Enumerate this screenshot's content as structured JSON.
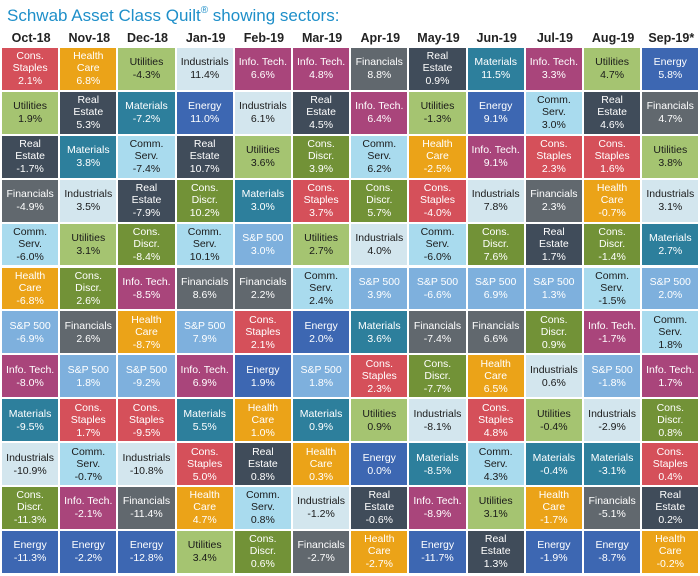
{
  "title": {
    "text": "Schwab Asset Class Quilt",
    "sup": "®",
    "suffix": " showing sectors:"
  },
  "colors": {
    "Cons. Staples": "#d5505a",
    "Health Care": "#eba318",
    "Utilities": "#a5c471",
    "Industrials": "#d3e6ee",
    "Info. Tech.": "#a9457b",
    "Energy": "#3d67b2",
    "Financials": "#61686e",
    "Materials": "#2d7f9c",
    "Real Estate": "#404c5a",
    "Comm. Serv.": "#a9dbee",
    "S&P 500": "#7eb0dd",
    "Cons. Discr.": "#729237"
  },
  "chart_data": {
    "type": "table",
    "title": "Schwab Asset Class Quilt showing sectors:",
    "columns": [
      "Oct-18",
      "Nov-18",
      "Dec-18",
      "Jan-19",
      "Feb-19",
      "Mar-19",
      "Apr-19",
      "May-19",
      "Jun-19",
      "Jul-19",
      "Aug-19",
      "Sep-19*"
    ],
    "rows": [
      [
        [
          "Cons. Staples",
          "2.1%"
        ],
        [
          "Health Care",
          "6.8%"
        ],
        [
          "Utilities",
          "-4.3%"
        ],
        [
          "Industrials",
          "11.4%"
        ],
        [
          "Info. Tech.",
          "6.6%"
        ],
        [
          "Info. Tech.",
          "4.8%"
        ],
        [
          "Financials",
          "8.8%"
        ],
        [
          "Real Estate",
          "0.9%"
        ],
        [
          "Materials",
          "11.5%"
        ],
        [
          "Info. Tech.",
          "3.3%"
        ],
        [
          "Utilities",
          "4.7%"
        ],
        [
          "Energy",
          "5.8%"
        ]
      ],
      [
        [
          "Utilities",
          "1.9%"
        ],
        [
          "Real Estate",
          "5.3%"
        ],
        [
          "Materials",
          "-7.2%"
        ],
        [
          "Energy",
          "11.0%"
        ],
        [
          "Industrials",
          "6.1%"
        ],
        [
          "Real Estate",
          "4.5%"
        ],
        [
          "Info. Tech.",
          "6.4%"
        ],
        [
          "Utilities",
          "-1.3%"
        ],
        [
          "Energy",
          "9.1%"
        ],
        [
          "Comm. Serv.",
          "3.0%"
        ],
        [
          "Real Estate",
          "4.6%"
        ],
        [
          "Financials",
          "4.7%"
        ]
      ],
      [
        [
          "Real Estate",
          "-1.7%"
        ],
        [
          "Materials",
          "3.8%"
        ],
        [
          "Comm. Serv.",
          "-7.4%"
        ],
        [
          "Real Estate",
          "10.7%"
        ],
        [
          "Utilities",
          "3.6%"
        ],
        [
          "Cons. Discr.",
          "3.9%"
        ],
        [
          "Comm. Serv.",
          "6.2%"
        ],
        [
          "Health Care",
          "-2.5%"
        ],
        [
          "Info. Tech.",
          "9.1%"
        ],
        [
          "Cons. Staples",
          "2.3%"
        ],
        [
          "Cons. Staples",
          "1.6%"
        ],
        [
          "Utilities",
          "3.8%"
        ]
      ],
      [
        [
          "Financials",
          "-4.9%"
        ],
        [
          "Industrials",
          "3.5%"
        ],
        [
          "Real Estate",
          "-7.9%"
        ],
        [
          "Cons. Discr.",
          "10.2%"
        ],
        [
          "Materials",
          "3.0%"
        ],
        [
          "Cons. Staples",
          "3.7%"
        ],
        [
          "Cons. Discr.",
          "5.7%"
        ],
        [
          "Cons. Staples",
          "-4.0%"
        ],
        [
          "Industrials",
          "7.8%"
        ],
        [
          "Financials",
          "2.3%"
        ],
        [
          "Health Care",
          "-0.7%"
        ],
        [
          "Industrials",
          "3.1%"
        ]
      ],
      [
        [
          "Comm. Serv.",
          "-6.0%"
        ],
        [
          "Utilities",
          "3.1%"
        ],
        [
          "Cons. Discr.",
          "-8.4%"
        ],
        [
          "Comm. Serv.",
          "10.1%"
        ],
        [
          "S&P 500",
          "3.0%"
        ],
        [
          "Utilities",
          "2.7%"
        ],
        [
          "Industrials",
          "4.0%"
        ],
        [
          "Comm. Serv.",
          "-6.0%"
        ],
        [
          "Cons. Discr.",
          "7.6%"
        ],
        [
          "Real Estate",
          "1.7%"
        ],
        [
          "Cons. Discr.",
          "-1.4%"
        ],
        [
          "Materials",
          "2.7%"
        ]
      ],
      [
        [
          "Health Care",
          "-6.8%"
        ],
        [
          "Cons. Discr.",
          "2.6%"
        ],
        [
          "Info. Tech.",
          "-8.5%"
        ],
        [
          "Financials",
          "8.6%"
        ],
        [
          "Financials",
          "2.2%"
        ],
        [
          "Comm. Serv.",
          "2.4%"
        ],
        [
          "S&P 500",
          "3.9%"
        ],
        [
          "S&P 500",
          "-6.6%"
        ],
        [
          "S&P 500",
          "6.9%"
        ],
        [
          "S&P 500",
          "1.3%"
        ],
        [
          "Comm. Serv.",
          "-1.5%"
        ],
        [
          "S&P 500",
          "2.0%"
        ]
      ],
      [
        [
          "S&P 500",
          "-6.9%"
        ],
        [
          "Financials",
          "2.6%"
        ],
        [
          "Health Care",
          "-8.7%"
        ],
        [
          "S&P 500",
          "7.9%"
        ],
        [
          "Cons. Staples",
          "2.1%"
        ],
        [
          "Energy",
          "2.0%"
        ],
        [
          "Materials",
          "3.6%"
        ],
        [
          "Financials",
          "-7.4%"
        ],
        [
          "Financials",
          "6.6%"
        ],
        [
          "Cons. Discr.",
          "0.9%"
        ],
        [
          "Info. Tech.",
          "-1.7%"
        ],
        [
          "Comm. Serv.",
          "1.8%"
        ]
      ],
      [
        [
          "Info. Tech.",
          "-8.0%"
        ],
        [
          "S&P 500",
          "1.8%"
        ],
        [
          "S&P 500",
          "-9.2%"
        ],
        [
          "Info. Tech.",
          "6.9%"
        ],
        [
          "Energy",
          "1.9%"
        ],
        [
          "S&P 500",
          "1.8%"
        ],
        [
          "Cons. Staples",
          "2.3%"
        ],
        [
          "Cons. Discr.",
          "-7.7%"
        ],
        [
          "Health Care",
          "6.5%"
        ],
        [
          "Industrials",
          "0.6%"
        ],
        [
          "S&P 500",
          "-1.8%"
        ],
        [
          "Info. Tech.",
          "1.7%"
        ]
      ],
      [
        [
          "Materials",
          "-9.5%"
        ],
        [
          "Cons. Staples",
          "1.7%"
        ],
        [
          "Cons. Staples",
          "-9.5%"
        ],
        [
          "Materials",
          "5.5%"
        ],
        [
          "Health Care",
          "1.0%"
        ],
        [
          "Materials",
          "0.9%"
        ],
        [
          "Utilities",
          "0.9%"
        ],
        [
          "Industrials",
          "-8.1%"
        ],
        [
          "Cons. Staples",
          "4.8%"
        ],
        [
          "Utilities",
          "-0.4%"
        ],
        [
          "Industrials",
          "-2.9%"
        ],
        [
          "Cons. Discr.",
          "0.8%"
        ]
      ],
      [
        [
          "Industrials",
          "-10.9%"
        ],
        [
          "Comm. Serv.",
          "-0.7%"
        ],
        [
          "Industrials",
          "-10.8%"
        ],
        [
          "Cons. Staples",
          "5.0%"
        ],
        [
          "Real Estate",
          "0.8%"
        ],
        [
          "Health Care",
          "0.3%"
        ],
        [
          "Energy",
          "0.0%"
        ],
        [
          "Materials",
          "-8.5%"
        ],
        [
          "Comm. Serv.",
          "4.3%"
        ],
        [
          "Materials",
          "-0.4%"
        ],
        [
          "Materials",
          "-3.1%"
        ],
        [
          "Cons. Staples",
          "0.4%"
        ]
      ],
      [
        [
          "Cons. Discr.",
          "-11.3%"
        ],
        [
          "Info. Tech.",
          "-2.1%"
        ],
        [
          "Financials",
          "-11.4%"
        ],
        [
          "Health Care",
          "4.7%"
        ],
        [
          "Comm. Serv.",
          "0.8%"
        ],
        [
          "Industrials",
          "-1.2%"
        ],
        [
          "Real Estate",
          "-0.6%"
        ],
        [
          "Info. Tech.",
          "-8.9%"
        ],
        [
          "Utilities",
          "3.1%"
        ],
        [
          "Health Care",
          "-1.7%"
        ],
        [
          "Financials",
          "-5.1%"
        ],
        [
          "Real Estate",
          "0.2%"
        ]
      ],
      [
        [
          "Energy",
          "-11.3%"
        ],
        [
          "Energy",
          "-2.2%"
        ],
        [
          "Energy",
          "-12.8%"
        ],
        [
          "Utilities",
          "3.4%"
        ],
        [
          "Cons. Discr.",
          "0.6%"
        ],
        [
          "Financials",
          "-2.7%"
        ],
        [
          "Health Care",
          "-2.7%"
        ],
        [
          "Energy",
          "-11.7%"
        ],
        [
          "Real Estate",
          "1.3%"
        ],
        [
          "Energy",
          "-1.9%"
        ],
        [
          "Energy",
          "-8.7%"
        ],
        [
          "Health Care",
          "-0.2%"
        ]
      ]
    ]
  }
}
